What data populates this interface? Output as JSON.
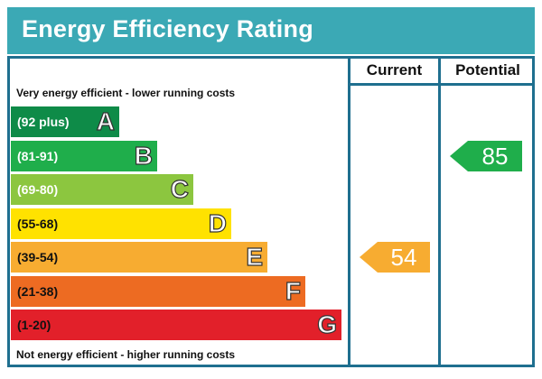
{
  "header": {
    "title": "Energy Efficiency Rating",
    "bg_color": "#3ba9b5"
  },
  "columns": {
    "current": "Current",
    "potential": "Potential"
  },
  "notes": {
    "top": "Very energy efficient - lower running costs",
    "bottom": "Not energy efficient - higher running costs"
  },
  "chart_data": {
    "type": "bar",
    "categories": [
      "A",
      "B",
      "C",
      "D",
      "E",
      "F",
      "G"
    ],
    "bands": [
      {
        "letter": "A",
        "range": "(92 plus)",
        "min": 92,
        "max": 100,
        "color": "#0e8b48",
        "dark_text": false
      },
      {
        "letter": "B",
        "range": "(81-91)",
        "min": 81,
        "max": 91,
        "color": "#1fae4b",
        "dark_text": false
      },
      {
        "letter": "C",
        "range": "(69-80)",
        "min": 69,
        "max": 80,
        "color": "#8cc63f",
        "dark_text": false
      },
      {
        "letter": "D",
        "range": "(55-68)",
        "min": 55,
        "max": 68,
        "color": "#ffe200",
        "dark_text": true
      },
      {
        "letter": "E",
        "range": "(39-54)",
        "min": 39,
        "max": 54,
        "color": "#f7ac31",
        "dark_text": true
      },
      {
        "letter": "F",
        "range": "(21-38)",
        "min": 21,
        "max": 38,
        "color": "#ed6b22",
        "dark_text": true
      },
      {
        "letter": "G",
        "range": "(1-20)",
        "min": 1,
        "max": 20,
        "color": "#e2202a",
        "dark_text": true
      }
    ],
    "ratings": {
      "current": {
        "value": 54,
        "band": "E",
        "color": "#f7ac31"
      },
      "potential": {
        "value": 85,
        "band": "B",
        "color": "#1fae4b"
      }
    }
  }
}
